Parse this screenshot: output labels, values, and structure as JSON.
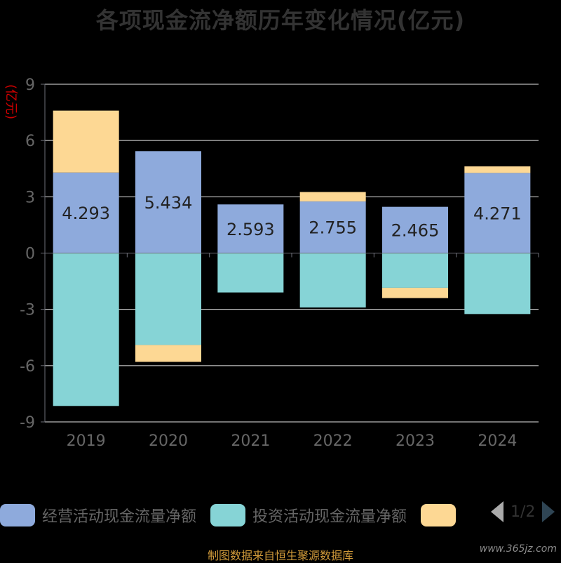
{
  "page": {
    "source_note": "制图数据来自恒生聚源数据库",
    "watermark": "www.365jz.com"
  },
  "legend": {
    "items": [
      {
        "label": "经营活动现金流量净额",
        "color": "#8eaadc"
      },
      {
        "label": "投资活动现金流量净额",
        "color": "#86d4d6"
      },
      {
        "label": "",
        "color": "#fdd894"
      }
    ],
    "pager": "1/2"
  },
  "chart_data": {
    "type": "bar",
    "stacked": true,
    "title": "各项现金流净额历年变化情况(亿元)",
    "ylabel": "(亿元)",
    "ylim": [
      -9,
      9
    ],
    "yticks": [
      9,
      6,
      3,
      0,
      -3,
      -6,
      -9
    ],
    "categories": [
      "2019",
      "2020",
      "2021",
      "2022",
      "2023",
      "2024"
    ],
    "grid": true,
    "legend_position": "bottom",
    "series": [
      {
        "name": "经营活动现金流量净额",
        "color": "#8eaadc",
        "values": [
          4.293,
          5.434,
          2.593,
          2.755,
          2.465,
          4.271
        ],
        "show_labels": true
      },
      {
        "name": "投资活动现金流量净额",
        "color": "#86d4d6",
        "values": [
          -8.15,
          -4.9,
          -2.1,
          -2.9,
          -1.85,
          -3.25
        ],
        "show_labels": false
      },
      {
        "name": "",
        "color": "#fdd894",
        "values": [
          3.3,
          -0.9,
          0,
          0.5,
          -0.55,
          0.35
        ],
        "show_labels": false
      }
    ]
  }
}
